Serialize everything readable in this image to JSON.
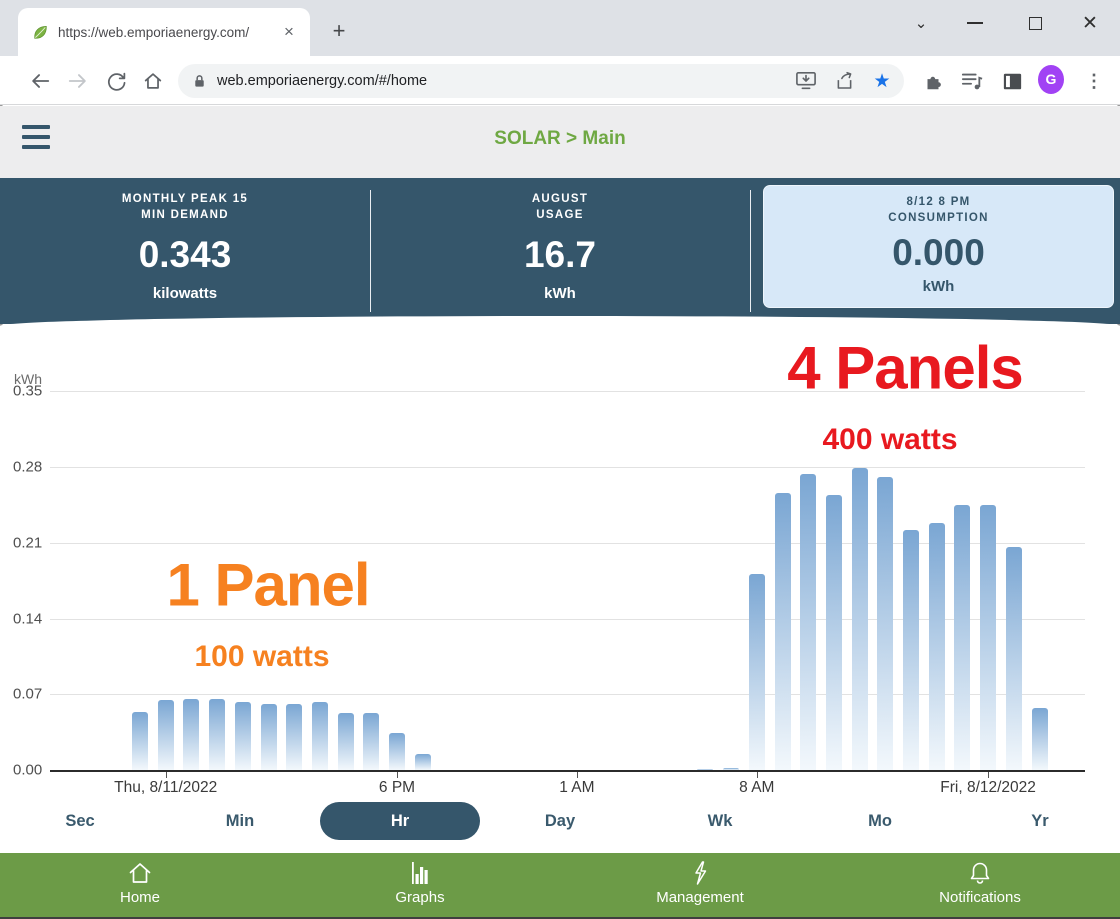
{
  "browser": {
    "tab_title": "https://web.emporiaenergy.com/",
    "url": "web.emporiaenergy.com/#/home",
    "avatar_letter": "G",
    "new_tab_label": "+",
    "close_tab_label": "×",
    "close_window_label": "✕",
    "chevron_label": "⌄",
    "menu_dots_label": "⋮",
    "star_label": "★"
  },
  "app": {
    "title": "SOLAR > Main",
    "title_color": "#6fa843"
  },
  "stats": [
    {
      "label_line1": "MONTHLY PEAK 15",
      "label_line2": "MIN DEMAND",
      "value": "0.343",
      "unit": "kilowatts"
    },
    {
      "label_line1": "AUGUST",
      "label_line2": "USAGE",
      "value": "16.7",
      "unit": "kWh"
    },
    {
      "label_line1": "8/12 8 PM",
      "label_line2": "CONSUMPTION",
      "value": "0.000",
      "unit": "kWh"
    }
  ],
  "chart_data": {
    "type": "bar",
    "title": "",
    "ylabel_unit": "kWh",
    "ylim": [
      0,
      0.35
    ],
    "yticks": [
      "0.35",
      "0.28",
      "0.21",
      "0.14",
      "0.07",
      "0.00"
    ],
    "grid": true,
    "x_unit": "hours since Thu 8/11/2022 8 AM",
    "x_labels": [
      {
        "t": 1,
        "text": "Thu, 8/11/2022"
      },
      {
        "t": 10,
        "text": "6 PM"
      },
      {
        "t": 17,
        "text": "1 AM"
      },
      {
        "t": 24,
        "text": "8 AM"
      },
      {
        "t": 33,
        "text": "Fri, 8/12/2022"
      }
    ],
    "bars": [
      {
        "t": 0,
        "kwh": 0.054
      },
      {
        "t": 1,
        "kwh": 0.065
      },
      {
        "t": 2,
        "kwh": 0.066
      },
      {
        "t": 3,
        "kwh": 0.066
      },
      {
        "t": 4,
        "kwh": 0.063
      },
      {
        "t": 5,
        "kwh": 0.061
      },
      {
        "t": 6,
        "kwh": 0.061
      },
      {
        "t": 7,
        "kwh": 0.063
      },
      {
        "t": 8,
        "kwh": 0.053
      },
      {
        "t": 9,
        "kwh": 0.053
      },
      {
        "t": 10,
        "kwh": 0.034
      },
      {
        "t": 11,
        "kwh": 0.015
      },
      {
        "t": 22,
        "kwh": 0.001
      },
      {
        "t": 23,
        "kwh": 0.002
      },
      {
        "t": 24,
        "kwh": 0.181
      },
      {
        "t": 25,
        "kwh": 0.256
      },
      {
        "t": 26,
        "kwh": 0.274
      },
      {
        "t": 27,
        "kwh": 0.254
      },
      {
        "t": 28,
        "kwh": 0.279
      },
      {
        "t": 29,
        "kwh": 0.271
      },
      {
        "t": 30,
        "kwh": 0.222
      },
      {
        "t": 31,
        "kwh": 0.228
      },
      {
        "t": 32,
        "kwh": 0.245
      },
      {
        "t": 33,
        "kwh": 0.245
      },
      {
        "t": 34,
        "kwh": 0.206
      },
      {
        "t": 35,
        "kwh": 0.057
      }
    ],
    "bar_color_top": "#7aa6d3",
    "bar_color_bottom": "#f3f8fc"
  },
  "annotations": [
    {
      "text": "4 Panels",
      "color": "#e8191f",
      "size": "big"
    },
    {
      "text": "400 watts",
      "color": "#e8191f",
      "size": "small"
    },
    {
      "text": "1 Panel",
      "color": "#f68120",
      "size": "big"
    },
    {
      "text": "100 watts",
      "color": "#f68120",
      "size": "small"
    }
  ],
  "range_tabs": {
    "options": [
      "Sec",
      "Min",
      "Hr",
      "Day",
      "Wk",
      "Mo",
      "Yr"
    ],
    "active": "Hr"
  },
  "bottom_nav": [
    {
      "label": "Home"
    },
    {
      "label": "Graphs"
    },
    {
      "label": "Management"
    },
    {
      "label": "Notifications"
    }
  ]
}
